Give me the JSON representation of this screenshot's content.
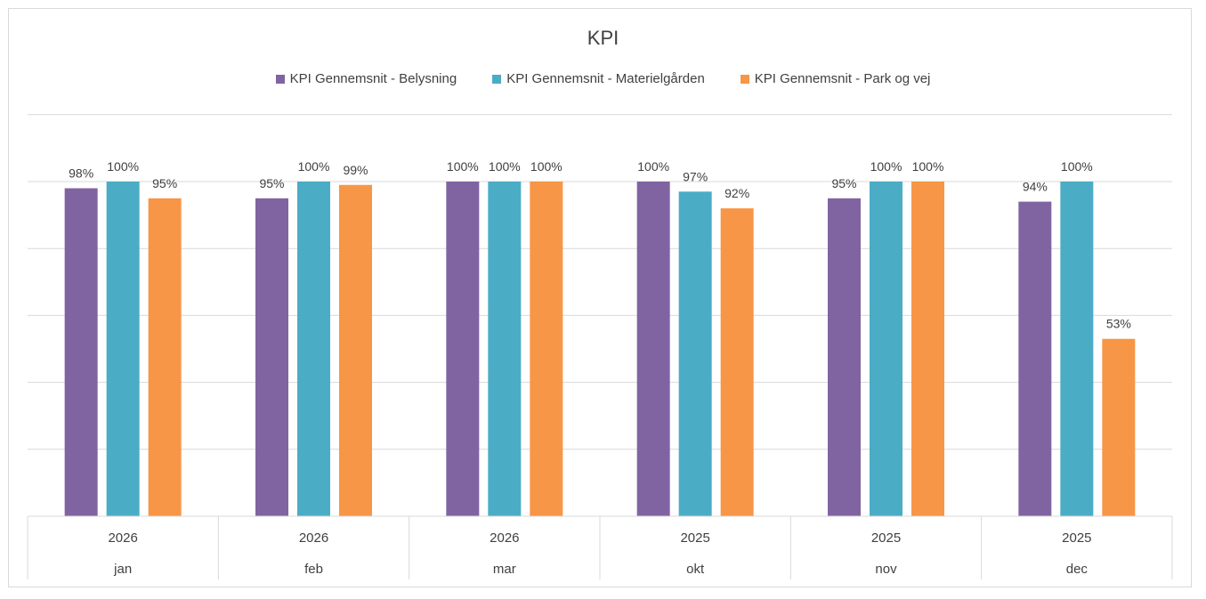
{
  "chart_data": {
    "type": "bar",
    "title": "KPI",
    "categories": [
      {
        "year": "2026",
        "month": "jan"
      },
      {
        "year": "2026",
        "month": "feb"
      },
      {
        "year": "2026",
        "month": "mar"
      },
      {
        "year": "2025",
        "month": "okt"
      },
      {
        "year": "2025",
        "month": "nov"
      },
      {
        "year": "2025",
        "month": "dec"
      }
    ],
    "series": [
      {
        "name": "KPI Gennemsnit - Belysning",
        "color": "#8064a2",
        "values": [
          98,
          95,
          100,
          100,
          95,
          94
        ],
        "labels": [
          "98%",
          "95%",
          "100%",
          "100%",
          "95%",
          "94%"
        ]
      },
      {
        "name": "KPI Gennemsnit - Materielgården",
        "color": "#4bacc6",
        "values": [
          100,
          100,
          100,
          97,
          100,
          100
        ],
        "labels": [
          "100%",
          "100%",
          "100%",
          "97%",
          "100%",
          "100%"
        ]
      },
      {
        "name": "KPI Gennemsnit - Park og vej",
        "color": "#f79646",
        "values": [
          95,
          99,
          100,
          92,
          100,
          53
        ],
        "labels": [
          "95%",
          "99%",
          "100%",
          "92%",
          "100%",
          "53%"
        ]
      }
    ],
    "ylim": [
      0,
      120
    ],
    "grid": true,
    "legend_position": "top"
  }
}
